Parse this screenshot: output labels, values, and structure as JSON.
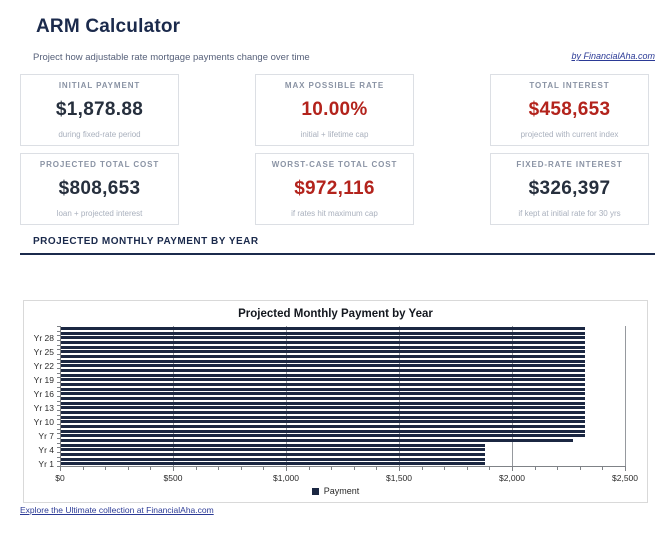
{
  "header": {
    "title": "ARM Calculator",
    "subtitle": "Project how adjustable rate mortgage payments change over time",
    "byline": "by FinancialAha.com"
  },
  "cards": [
    {
      "label": "INITIAL PAYMENT",
      "value": "$1,878.88",
      "sub": "during fixed-rate period",
      "tone": "dark"
    },
    {
      "label": "MAX POSSIBLE RATE",
      "value": "10.00%",
      "sub": "initial + lifetime cap",
      "tone": "red"
    },
    {
      "label": "TOTAL INTEREST",
      "value": "$458,653",
      "sub": "projected with current index",
      "tone": "red"
    },
    {
      "label": "PROJECTED TOTAL COST",
      "value": "$808,653",
      "sub": "loan + projected interest",
      "tone": "dark"
    },
    {
      "label": "WORST-CASE TOTAL COST",
      "value": "$972,116",
      "sub": "if rates hit maximum cap",
      "tone": "red"
    },
    {
      "label": "FIXED-RATE INTEREST",
      "value": "$326,397",
      "sub": "if kept at initial rate for 30 yrs",
      "tone": "dark"
    }
  ],
  "section": {
    "heading": "PROJECTED MONTHLY PAYMENT BY YEAR"
  },
  "chart_data": {
    "type": "bar",
    "orientation": "horizontal",
    "title": "Projected Monthly Payment by Year",
    "categories": [
      "Yr 1",
      "Yr 2",
      "Yr 3",
      "Yr 4",
      "Yr 5",
      "Yr 6",
      "Yr 7",
      "Yr 8",
      "Yr 9",
      "Yr 10",
      "Yr 11",
      "Yr 12",
      "Yr 13",
      "Yr 14",
      "Yr 15",
      "Yr 16",
      "Yr 17",
      "Yr 18",
      "Yr 19",
      "Yr 20",
      "Yr 21",
      "Yr 22",
      "Yr 23",
      "Yr 24",
      "Yr 25",
      "Yr 26",
      "Yr 27",
      "Yr 28",
      "Yr 29",
      "Yr 30"
    ],
    "values": [
      1878.88,
      1878.88,
      1878.88,
      1878.88,
      1878.88,
      2271.63,
      2322,
      2322,
      2322,
      2322,
      2322,
      2322,
      2322,
      2322,
      2322,
      2322,
      2322,
      2322,
      2322,
      2322,
      2322,
      2322,
      2322,
      2322,
      2322,
      2322,
      2322,
      2322,
      2322,
      2322
    ],
    "series_name": "Payment",
    "xlabel": "",
    "ylabel": "",
    "xlim": [
      0,
      2500
    ],
    "x_ticks": [
      0,
      500,
      1000,
      1500,
      2000,
      2500
    ],
    "x_tick_labels": [
      "$0",
      "$500",
      "$1,000",
      "$1,500",
      "$2,000",
      "$2,500"
    ],
    "x_minor_tick_step": 100,
    "y_label_every": 3,
    "grid": true,
    "legend": [
      "Payment"
    ],
    "legend_position": "bottom",
    "bar_color": "#1b2742"
  },
  "colors": {
    "navy": "#1b2a4c",
    "value_dark": "#262f3d",
    "accent_red": "#b3231c",
    "label_gray": "#8a93a4",
    "link_blue": "#2b3a96",
    "bar_navy": "#1b2742"
  },
  "footer": {
    "link": "Explore the Ultimate collection at FinancialAha.com"
  }
}
